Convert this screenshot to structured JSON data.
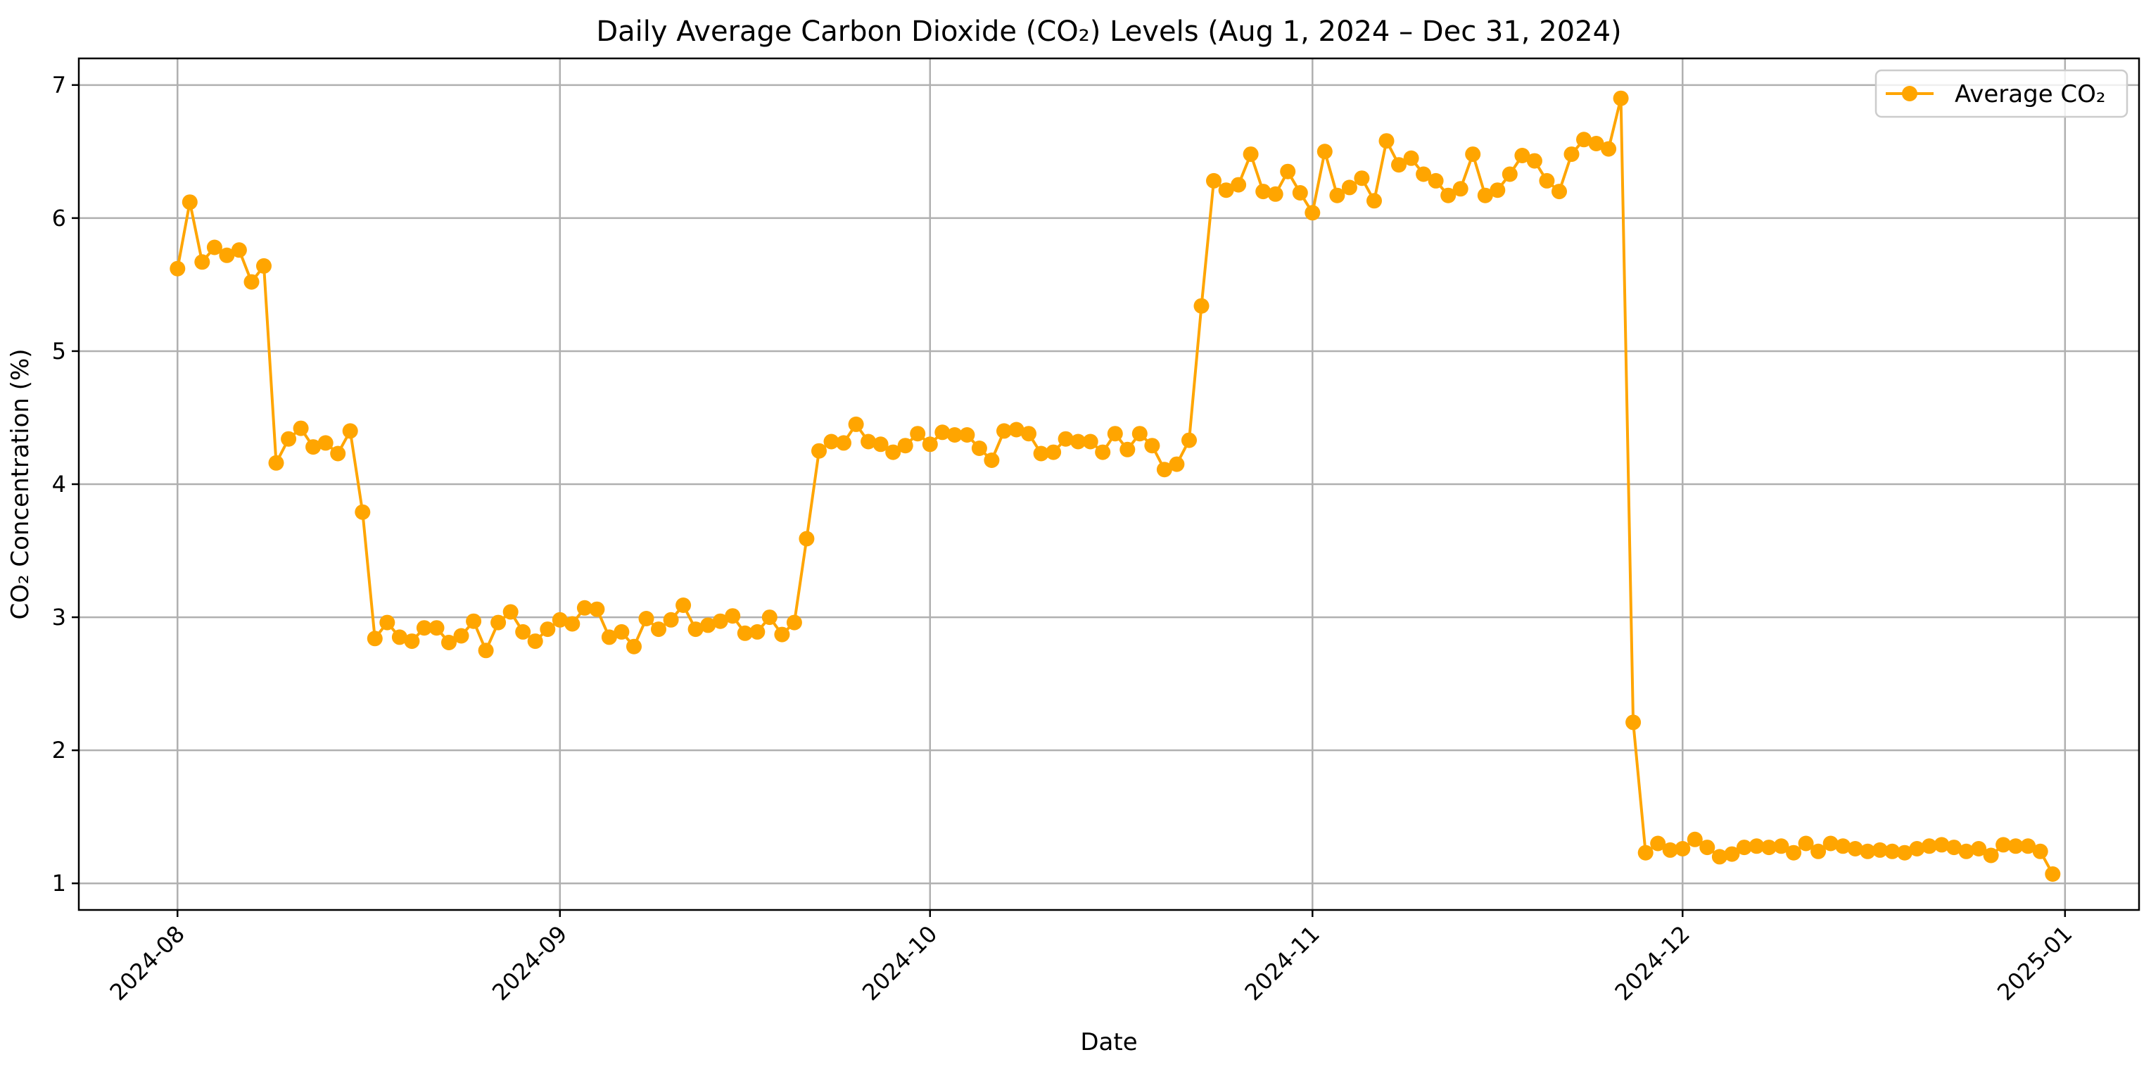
{
  "chart_data": {
    "type": "line",
    "title": "Daily Average Carbon Dioxide (CO₂) Levels (Aug 1, 2024 – Dec 31, 2024)",
    "xlabel": "Date",
    "ylabel": "CO₂ Concentration (%)",
    "x_start_date": "2024-08-01",
    "x_end_date": "2024-12-31",
    "xlim": [
      "2024-07-24",
      "2025-01-07"
    ],
    "ylim": [
      0.8,
      7.2
    ],
    "x_ticks": [
      "2024-08",
      "2024-09",
      "2024-10",
      "2024-11",
      "2024-12",
      "2025-01"
    ],
    "x_tick_dates": [
      "2024-08-01",
      "2024-09-01",
      "2024-10-01",
      "2024-11-01",
      "2024-12-01",
      "2025-01-01"
    ],
    "y_ticks": [
      "1",
      "2",
      "3",
      "4",
      "5",
      "6",
      "7"
    ],
    "y_tick_values": [
      1,
      2,
      3,
      4,
      5,
      6,
      7
    ],
    "grid": true,
    "legend_position": "top-right",
    "color": "#FFA500",
    "series": [
      {
        "name": "Average CO₂",
        "values": [
          5.62,
          6.12,
          5.67,
          5.78,
          5.72,
          5.76,
          5.52,
          5.64,
          4.16,
          4.34,
          4.42,
          4.28,
          4.31,
          4.23,
          4.4,
          3.79,
          2.84,
          2.96,
          2.85,
          2.82,
          2.92,
          2.92,
          2.81,
          2.86,
          2.97,
          2.75,
          2.96,
          3.04,
          2.89,
          2.82,
          2.91,
          2.98,
          2.95,
          3.07,
          3.06,
          2.85,
          2.89,
          2.78,
          2.99,
          2.91,
          2.98,
          3.09,
          2.91,
          2.94,
          2.97,
          3.01,
          2.88,
          2.89,
          3.0,
          2.87,
          2.96,
          3.59,
          4.25,
          4.32,
          4.31,
          4.45,
          4.32,
          4.3,
          4.24,
          4.29,
          4.38,
          4.3,
          4.39,
          4.37,
          4.37,
          4.27,
          4.18,
          4.4,
          4.41,
          4.38,
          4.23,
          4.24,
          4.34,
          4.32,
          4.32,
          4.24,
          4.38,
          4.26,
          4.38,
          4.29,
          4.11,
          4.15,
          4.33,
          5.34,
          6.28,
          6.21,
          6.25,
          6.48,
          6.2,
          6.18,
          6.35,
          6.19,
          6.04,
          6.5,
          6.17,
          6.23,
          6.3,
          6.13,
          6.58,
          6.4,
          6.45,
          6.33,
          6.28,
          6.17,
          6.22,
          6.48,
          6.17,
          6.21,
          6.33,
          6.47,
          6.43,
          6.28,
          6.2,
          6.48,
          6.59,
          6.56,
          6.52,
          6.9,
          2.21,
          1.23,
          1.3,
          1.25,
          1.26,
          1.33,
          1.27,
          1.2,
          1.22,
          1.27,
          1.28,
          1.27,
          1.28,
          1.23,
          1.3,
          1.24,
          1.3,
          1.28,
          1.26,
          1.24,
          1.25,
          1.24,
          1.23,
          1.26,
          1.28,
          1.29,
          1.27,
          1.24,
          1.26,
          1.21,
          1.29,
          1.28,
          1.28,
          1.24,
          1.07
        ]
      }
    ]
  }
}
